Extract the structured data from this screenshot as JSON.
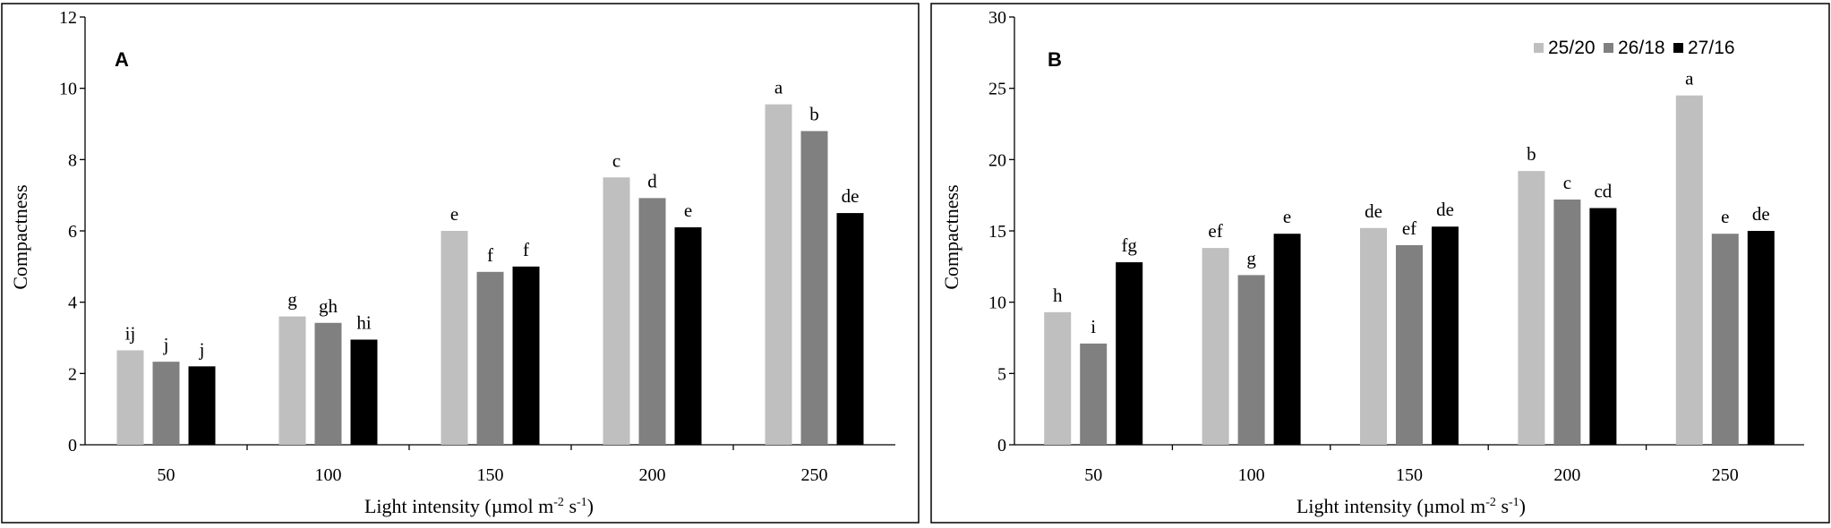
{
  "legend": [
    "25/20",
    "26/18",
    "27/16"
  ],
  "colors": {
    "s1": "#bfbfbf",
    "s2": "#808080",
    "s3": "#000000"
  },
  "chart_data": [
    {
      "type": "bar",
      "panel_label": "A",
      "categories": [
        "50",
        "100",
        "150",
        "200",
        "250"
      ],
      "xlabel": "Light intensity (µmol m",
      "xlabel_sup1": "-2",
      "xlabel_mid": " s",
      "xlabel_sup2": "-1",
      "xlabel_end": ")",
      "ylabel": "Compactness",
      "ylim": [
        0,
        12
      ],
      "yticks": [
        0,
        2,
        4,
        6,
        8,
        10,
        12
      ],
      "legend": "none",
      "series": [
        {
          "name": "25/20",
          "values": [
            2.65,
            3.6,
            6.0,
            7.5,
            9.55
          ],
          "letters": [
            "ij",
            "g",
            "e",
            "c",
            "a"
          ]
        },
        {
          "name": "26/18",
          "values": [
            2.33,
            3.42,
            4.85,
            6.92,
            8.8
          ],
          "letters": [
            "j",
            "gh",
            "f",
            "d",
            "b"
          ]
        },
        {
          "name": "27/16",
          "values": [
            2.2,
            2.95,
            5.0,
            6.1,
            6.5
          ],
          "letters": [
            "j",
            "hi",
            "f",
            "e",
            "de"
          ]
        }
      ]
    },
    {
      "type": "bar",
      "panel_label": "B",
      "categories": [
        "50",
        "100",
        "150",
        "200",
        "250"
      ],
      "xlabel": "Light intensity (µmol m",
      "xlabel_sup1": "-2",
      "xlabel_mid": " s",
      "xlabel_sup2": "-1",
      "xlabel_end": ")",
      "ylabel": "Compactness",
      "ylim": [
        0,
        30
      ],
      "yticks": [
        0,
        5,
        10,
        15,
        20,
        25,
        30
      ],
      "legend": "top-right",
      "series": [
        {
          "name": "25/20",
          "values": [
            9.3,
            13.8,
            15.2,
            19.2,
            24.5
          ],
          "letters": [
            "h",
            "ef",
            "de",
            "b",
            "a"
          ]
        },
        {
          "name": "26/18",
          "values": [
            7.1,
            11.9,
            14.0,
            17.2,
            14.8
          ],
          "letters": [
            "i",
            "g",
            "ef",
            "c",
            "e"
          ]
        },
        {
          "name": "27/16",
          "values": [
            12.8,
            14.8,
            15.3,
            16.6,
            15.0
          ],
          "letters": [
            "fg",
            "e",
            "de",
            "cd",
            "de"
          ]
        }
      ]
    }
  ]
}
